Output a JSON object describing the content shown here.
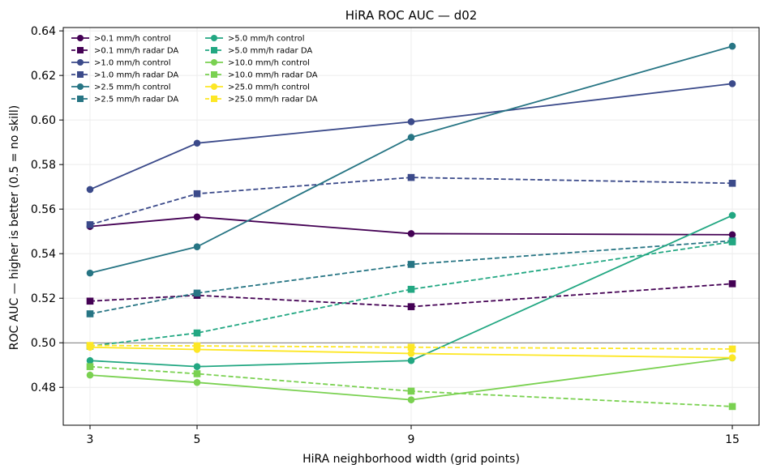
{
  "chart_data": {
    "type": "line",
    "title": "HiRA ROC AUC — d02",
    "xlabel": "HiRA neighborhood width (grid points)",
    "ylabel": "ROC AUC — higher is better (0.5 = no skill)",
    "x": [
      3,
      5,
      9,
      15
    ],
    "xticks": [
      3,
      5,
      9,
      15
    ],
    "xlim": [
      2.5,
      15.5
    ],
    "yticks": [
      0.48,
      0.5,
      0.52,
      0.54,
      0.56,
      0.58,
      0.6,
      0.62,
      0.64
    ],
    "ylim": [
      0.463,
      0.6415
    ],
    "reference_line": 0.5,
    "grid": true,
    "legend_position": "top-left",
    "legend_columns": 2,
    "series": [
      {
        "name": ">0.1 mm/h control",
        "color": "#440154",
        "style": "solid",
        "marker": "circle",
        "values": [
          0.5522,
          0.5565,
          0.549,
          0.5485
        ]
      },
      {
        "name": ">0.1 mm/h radar DA",
        "color": "#440154",
        "style": "dashed",
        "marker": "square",
        "values": [
          0.5187,
          0.5213,
          0.5162,
          0.5265
        ]
      },
      {
        "name": ">1.0 mm/h control",
        "color": "#3b4a8a",
        "style": "solid",
        "marker": "circle",
        "values": [
          0.5688,
          0.5896,
          0.5992,
          0.6163
        ]
      },
      {
        "name": ">1.0 mm/h radar DA",
        "color": "#3b4a8a",
        "style": "dashed",
        "marker": "square",
        "values": [
          0.553,
          0.5669,
          0.5742,
          0.5716
        ]
      },
      {
        "name": ">2.5 mm/h control",
        "color": "#277584",
        "style": "solid",
        "marker": "circle",
        "values": [
          0.5313,
          0.5431,
          0.5922,
          0.6331
        ]
      },
      {
        "name": ">2.5 mm/h radar DA",
        "color": "#277584",
        "style": "dashed",
        "marker": "square",
        "values": [
          0.513,
          0.5223,
          0.5352,
          0.5458
        ]
      },
      {
        "name": ">5.0 mm/h control",
        "color": "#22a782",
        "style": "solid",
        "marker": "circle",
        "values": [
          0.492,
          0.4893,
          0.492,
          0.5572
        ]
      },
      {
        "name": ">5.0 mm/h radar DA",
        "color": "#22a782",
        "style": "dashed",
        "marker": "square",
        "values": [
          0.4985,
          0.5044,
          0.524,
          0.5453
        ]
      },
      {
        "name": ">10.0 mm/h control",
        "color": "#7ad151",
        "style": "solid",
        "marker": "circle",
        "values": [
          0.4855,
          0.4822,
          0.4744,
          0.4932
        ]
      },
      {
        "name": ">10.0 mm/h radar DA",
        "color": "#7ad151",
        "style": "dashed",
        "marker": "square",
        "values": [
          0.4893,
          0.4861,
          0.4783,
          0.4714
        ]
      },
      {
        "name": ">25.0 mm/h control",
        "color": "#fde725",
        "style": "solid",
        "marker": "circle",
        "values": [
          0.498,
          0.497,
          0.4952,
          0.4933
        ]
      },
      {
        "name": ">25.0 mm/h radar DA",
        "color": "#fde725",
        "style": "dashed",
        "marker": "square",
        "values": [
          0.4988,
          0.4986,
          0.498,
          0.4972
        ]
      }
    ]
  }
}
